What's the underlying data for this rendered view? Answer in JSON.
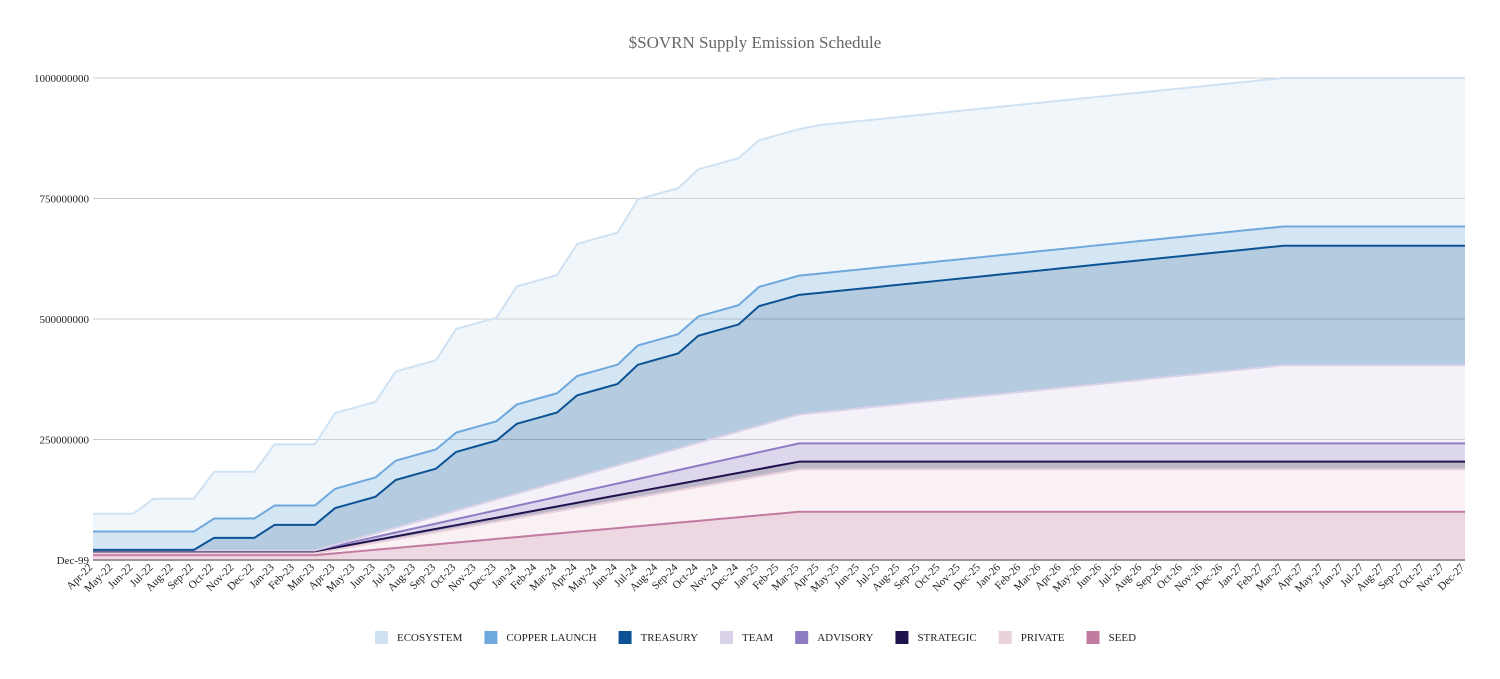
{
  "chart_data": {
    "type": "area",
    "stacked": true,
    "title": "$SOVRN Supply Emission Schedule",
    "legend": "bottom",
    "grid": true,
    "ylim": [
      0,
      1000000000
    ],
    "yticks": [
      {
        "value": 0,
        "label": "Dec-99"
      },
      250000000,
      500000000,
      750000000,
      1000000000
    ],
    "categories": [
      "Apr-22",
      "May-22",
      "Jun-22",
      "Jul-22",
      "Aug-22",
      "Sep-22",
      "Oct-22",
      "Nov-22",
      "Dec-22",
      "Jan-23",
      "Feb-23",
      "Mar-23",
      "Apr-23",
      "May-23",
      "Jun-23",
      "Jul-23",
      "Aug-23",
      "Sep-23",
      "Oct-23",
      "Nov-23",
      "Dec-23",
      "Jan-24",
      "Feb-24",
      "Mar-24",
      "Apr-24",
      "May-24",
      "Jun-24",
      "Jul-24",
      "Aug-24",
      "Sep-24",
      "Oct-24",
      "Nov-24",
      "Dec-24",
      "Jan-25",
      "Feb-25",
      "Mar-25",
      "Apr-25",
      "May-25",
      "Jun-25",
      "Jul-25",
      "Aug-25",
      "Sep-25",
      "Oct-25",
      "Nov-25",
      "Dec-25",
      "Jan-26",
      "Feb-26",
      "Mar-26",
      "Apr-26",
      "May-26",
      "Jun-26",
      "Jul-26",
      "Aug-26",
      "Sep-26",
      "Oct-26",
      "Nov-26",
      "Dec-26",
      "Jan-27",
      "Feb-27",
      "Mar-27",
      "Apr-27",
      "May-27",
      "Jun-27",
      "Jul-27",
      "Aug-27",
      "Sep-27",
      "Oct-27",
      "Nov-27",
      "Dec-27"
    ],
    "series": [
      {
        "name": "ECOSYSTEM",
        "color": "#cfe2f3",
        "values": [
          37000000,
          37000000,
          37000000,
          68000000,
          68000000,
          68000000,
          97000000,
          97000000,
          97000000,
          127000000,
          127000000,
          127000000,
          157000000,
          157000000,
          157000000,
          185000000,
          185000000,
          185000000,
          215000000,
          215000000,
          215000000,
          245000000,
          245000000,
          245000000,
          274000000,
          274000000,
          274000000,
          303000000,
          303000000,
          303000000,
          305000000,
          305000000,
          305000000,
          304000000,
          304000000,
          304000000,
          308000000,
          308000000,
          308000000,
          308000000,
          308000000,
          308000000,
          308000000,
          308000000,
          308000000,
          308000000,
          308000000,
          308000000,
          308000000,
          308000000,
          308000000,
          308000000,
          308000000,
          308000000,
          308000000,
          308000000,
          308000000,
          308000000,
          308000000,
          308000000,
          308000000,
          308000000,
          308000000,
          308000000,
          308000000,
          308000000,
          308000000,
          308000000,
          308000000
        ]
      },
      {
        "name": "COPPER LAUNCH",
        "color": "#6fa8dc",
        "values": [
          38000000,
          38000000,
          38000000,
          38000000,
          38000000,
          38000000,
          40000000,
          40000000,
          40000000,
          40000000,
          40000000,
          40000000,
          40000000,
          40000000,
          40000000,
          40000000,
          40000000,
          40000000,
          40000000,
          40000000,
          40000000,
          40000000,
          40000000,
          40000000,
          40000000,
          40000000,
          40000000,
          40000000,
          40000000,
          40000000,
          40000000,
          40000000,
          40000000,
          40000000,
          40000000,
          40000000,
          40000000,
          40000000,
          40000000,
          40000000,
          40000000,
          40000000,
          40000000,
          40000000,
          40000000,
          40000000,
          40000000,
          40000000,
          40000000,
          40000000,
          40000000,
          40000000,
          40000000,
          40000000,
          40000000,
          40000000,
          40000000,
          40000000,
          40000000,
          40000000,
          40000000,
          40000000,
          40000000,
          40000000,
          40000000,
          40000000,
          40000000,
          40000000,
          40000000
        ]
      },
      {
        "name": "TREASURY",
        "color": "#0b5394",
        "values": [
          1000000,
          1000000,
          1000000,
          1000000,
          1000000,
          1000000,
          26000000,
          26000000,
          26000000,
          53000000,
          53000000,
          53000000,
          76000000,
          76000000,
          76000000,
          99000000,
          99000000,
          99000000,
          122000000,
          122000000,
          122000000,
          145000000,
          145000000,
          145000000,
          169000000,
          169000000,
          169000000,
          197000000,
          197000000,
          197000000,
          222000000,
          222000000,
          222000000,
          248000000,
          248000000,
          248000000,
          248000000,
          248000000,
          248000000,
          248000000,
          248000000,
          248000000,
          248000000,
          248000000,
          248000000,
          248000000,
          248000000,
          248000000,
          248000000,
          248000000,
          248000000,
          248000000,
          248000000,
          248000000,
          248000000,
          248000000,
          248000000,
          248000000,
          248000000,
          248000000,
          248000000,
          248000000,
          248000000,
          248000000,
          248000000,
          248000000,
          248000000,
          248000000,
          248000000
        ]
      },
      {
        "name": "TEAM",
        "color": "#d9d2e9",
        "values": [
          0,
          0,
          0,
          0,
          0,
          0,
          0,
          0,
          0,
          0,
          0,
          0,
          2500000,
          5000000,
          7500000,
          10000000,
          12500000,
          15000000,
          17500000,
          20000000,
          22500000,
          25000000,
          27500000,
          30000000,
          32500000,
          35000000,
          37500000,
          40000000,
          42500000,
          45000000,
          47500000,
          50000000,
          52500000,
          55000000,
          57500000,
          60000000,
          64250000,
          68500000,
          72750000,
          77000000,
          81250000,
          85500000,
          89750000,
          94000000,
          98250000,
          102500000,
          106750000,
          111000000,
          115250000,
          119500000,
          123750000,
          128000000,
          132250000,
          136500000,
          140750000,
          145000000,
          149250000,
          153500000,
          157750000,
          162000000,
          162000000,
          162000000,
          162000000,
          162000000,
          162000000,
          162000000,
          162000000,
          162000000,
          162000000
        ]
      },
      {
        "name": "ADVISORY",
        "color": "#8e7cc3",
        "values": [
          2000000,
          2000000,
          2000000,
          2000000,
          2000000,
          2000000,
          2000000,
          2000000,
          2000000,
          2000000,
          2000000,
          2000000,
          3500000,
          5000000,
          6500000,
          8000000,
          9500000,
          11000000,
          12500000,
          14000000,
          15500000,
          17000000,
          18500000,
          20000000,
          21500000,
          23000000,
          24500000,
          26000000,
          27500000,
          29000000,
          30500000,
          32000000,
          33500000,
          35000000,
          36500000,
          38000000,
          38000000,
          38000000,
          38000000,
          38000000,
          38000000,
          38000000,
          38000000,
          38000000,
          38000000,
          38000000,
          38000000,
          38000000,
          38000000,
          38000000,
          38000000,
          38000000,
          38000000,
          38000000,
          38000000,
          38000000,
          38000000,
          38000000,
          38000000,
          38000000,
          38000000,
          38000000,
          38000000,
          38000000,
          38000000,
          38000000,
          38000000,
          38000000,
          38000000
        ]
      },
      {
        "name": "STRATEGIC",
        "color": "#20124d",
        "values": [
          4000000,
          4000000,
          4000000,
          4000000,
          4000000,
          4000000,
          4000000,
          4000000,
          4000000,
          4000000,
          4000000,
          4000000,
          4500000,
          5000000,
          5500000,
          6000000,
          6500000,
          7000000,
          7500000,
          8000000,
          8500000,
          9000000,
          9500000,
          10000000,
          10500000,
          11000000,
          11500000,
          12000000,
          12500000,
          13000000,
          13500000,
          14000000,
          14500000,
          15000000,
          15500000,
          16000000,
          16000000,
          16000000,
          16000000,
          16000000,
          16000000,
          16000000,
          16000000,
          16000000,
          16000000,
          16000000,
          16000000,
          16000000,
          16000000,
          16000000,
          16000000,
          16000000,
          16000000,
          16000000,
          16000000,
          16000000,
          16000000,
          16000000,
          16000000,
          16000000,
          16000000,
          16000000,
          16000000,
          16000000,
          16000000,
          16000000,
          16000000,
          16000000,
          16000000
        ]
      },
      {
        "name": "PRIVATE",
        "color": "#ead1dc",
        "values": [
          4000000,
          4000000,
          4000000,
          4000000,
          4000000,
          4000000,
          4000000,
          4000000,
          4000000,
          4000000,
          4000000,
          4000000,
          7500000,
          11000000,
          14500000,
          18000000,
          21500000,
          25000000,
          28500000,
          32000000,
          35500000,
          39000000,
          42500000,
          46000000,
          49500000,
          53000000,
          56500000,
          60000000,
          63500000,
          67000000,
          70500000,
          74000000,
          77500000,
          81000000,
          84500000,
          88000000,
          88000000,
          88000000,
          88000000,
          88000000,
          88000000,
          88000000,
          88000000,
          88000000,
          88000000,
          88000000,
          88000000,
          88000000,
          88000000,
          88000000,
          88000000,
          88000000,
          88000000,
          88000000,
          88000000,
          88000000,
          88000000,
          88000000,
          88000000,
          88000000,
          88000000,
          88000000,
          88000000,
          88000000,
          88000000,
          88000000,
          88000000,
          88000000,
          88000000
        ]
      },
      {
        "name": "SEED",
        "color": "#c27ba0",
        "values": [
          10000000,
          10000000,
          10000000,
          10000000,
          10000000,
          10000000,
          10000000,
          10000000,
          10000000,
          10000000,
          10000000,
          10000000,
          13750000,
          17500000,
          21250000,
          25000000,
          28750000,
          32500000,
          36250000,
          40000000,
          43750000,
          47500000,
          51250000,
          55000000,
          58750000,
          62500000,
          66250000,
          70000000,
          73750000,
          77500000,
          81250000,
          85000000,
          88750000,
          92500000,
          96250000,
          100000000,
          100000000,
          100000000,
          100000000,
          100000000,
          100000000,
          100000000,
          100000000,
          100000000,
          100000000,
          100000000,
          100000000,
          100000000,
          100000000,
          100000000,
          100000000,
          100000000,
          100000000,
          100000000,
          100000000,
          100000000,
          100000000,
          100000000,
          100000000,
          100000000,
          100000000,
          100000000,
          100000000,
          100000000,
          100000000,
          100000000,
          100000000,
          100000000,
          100000000
        ]
      }
    ]
  }
}
